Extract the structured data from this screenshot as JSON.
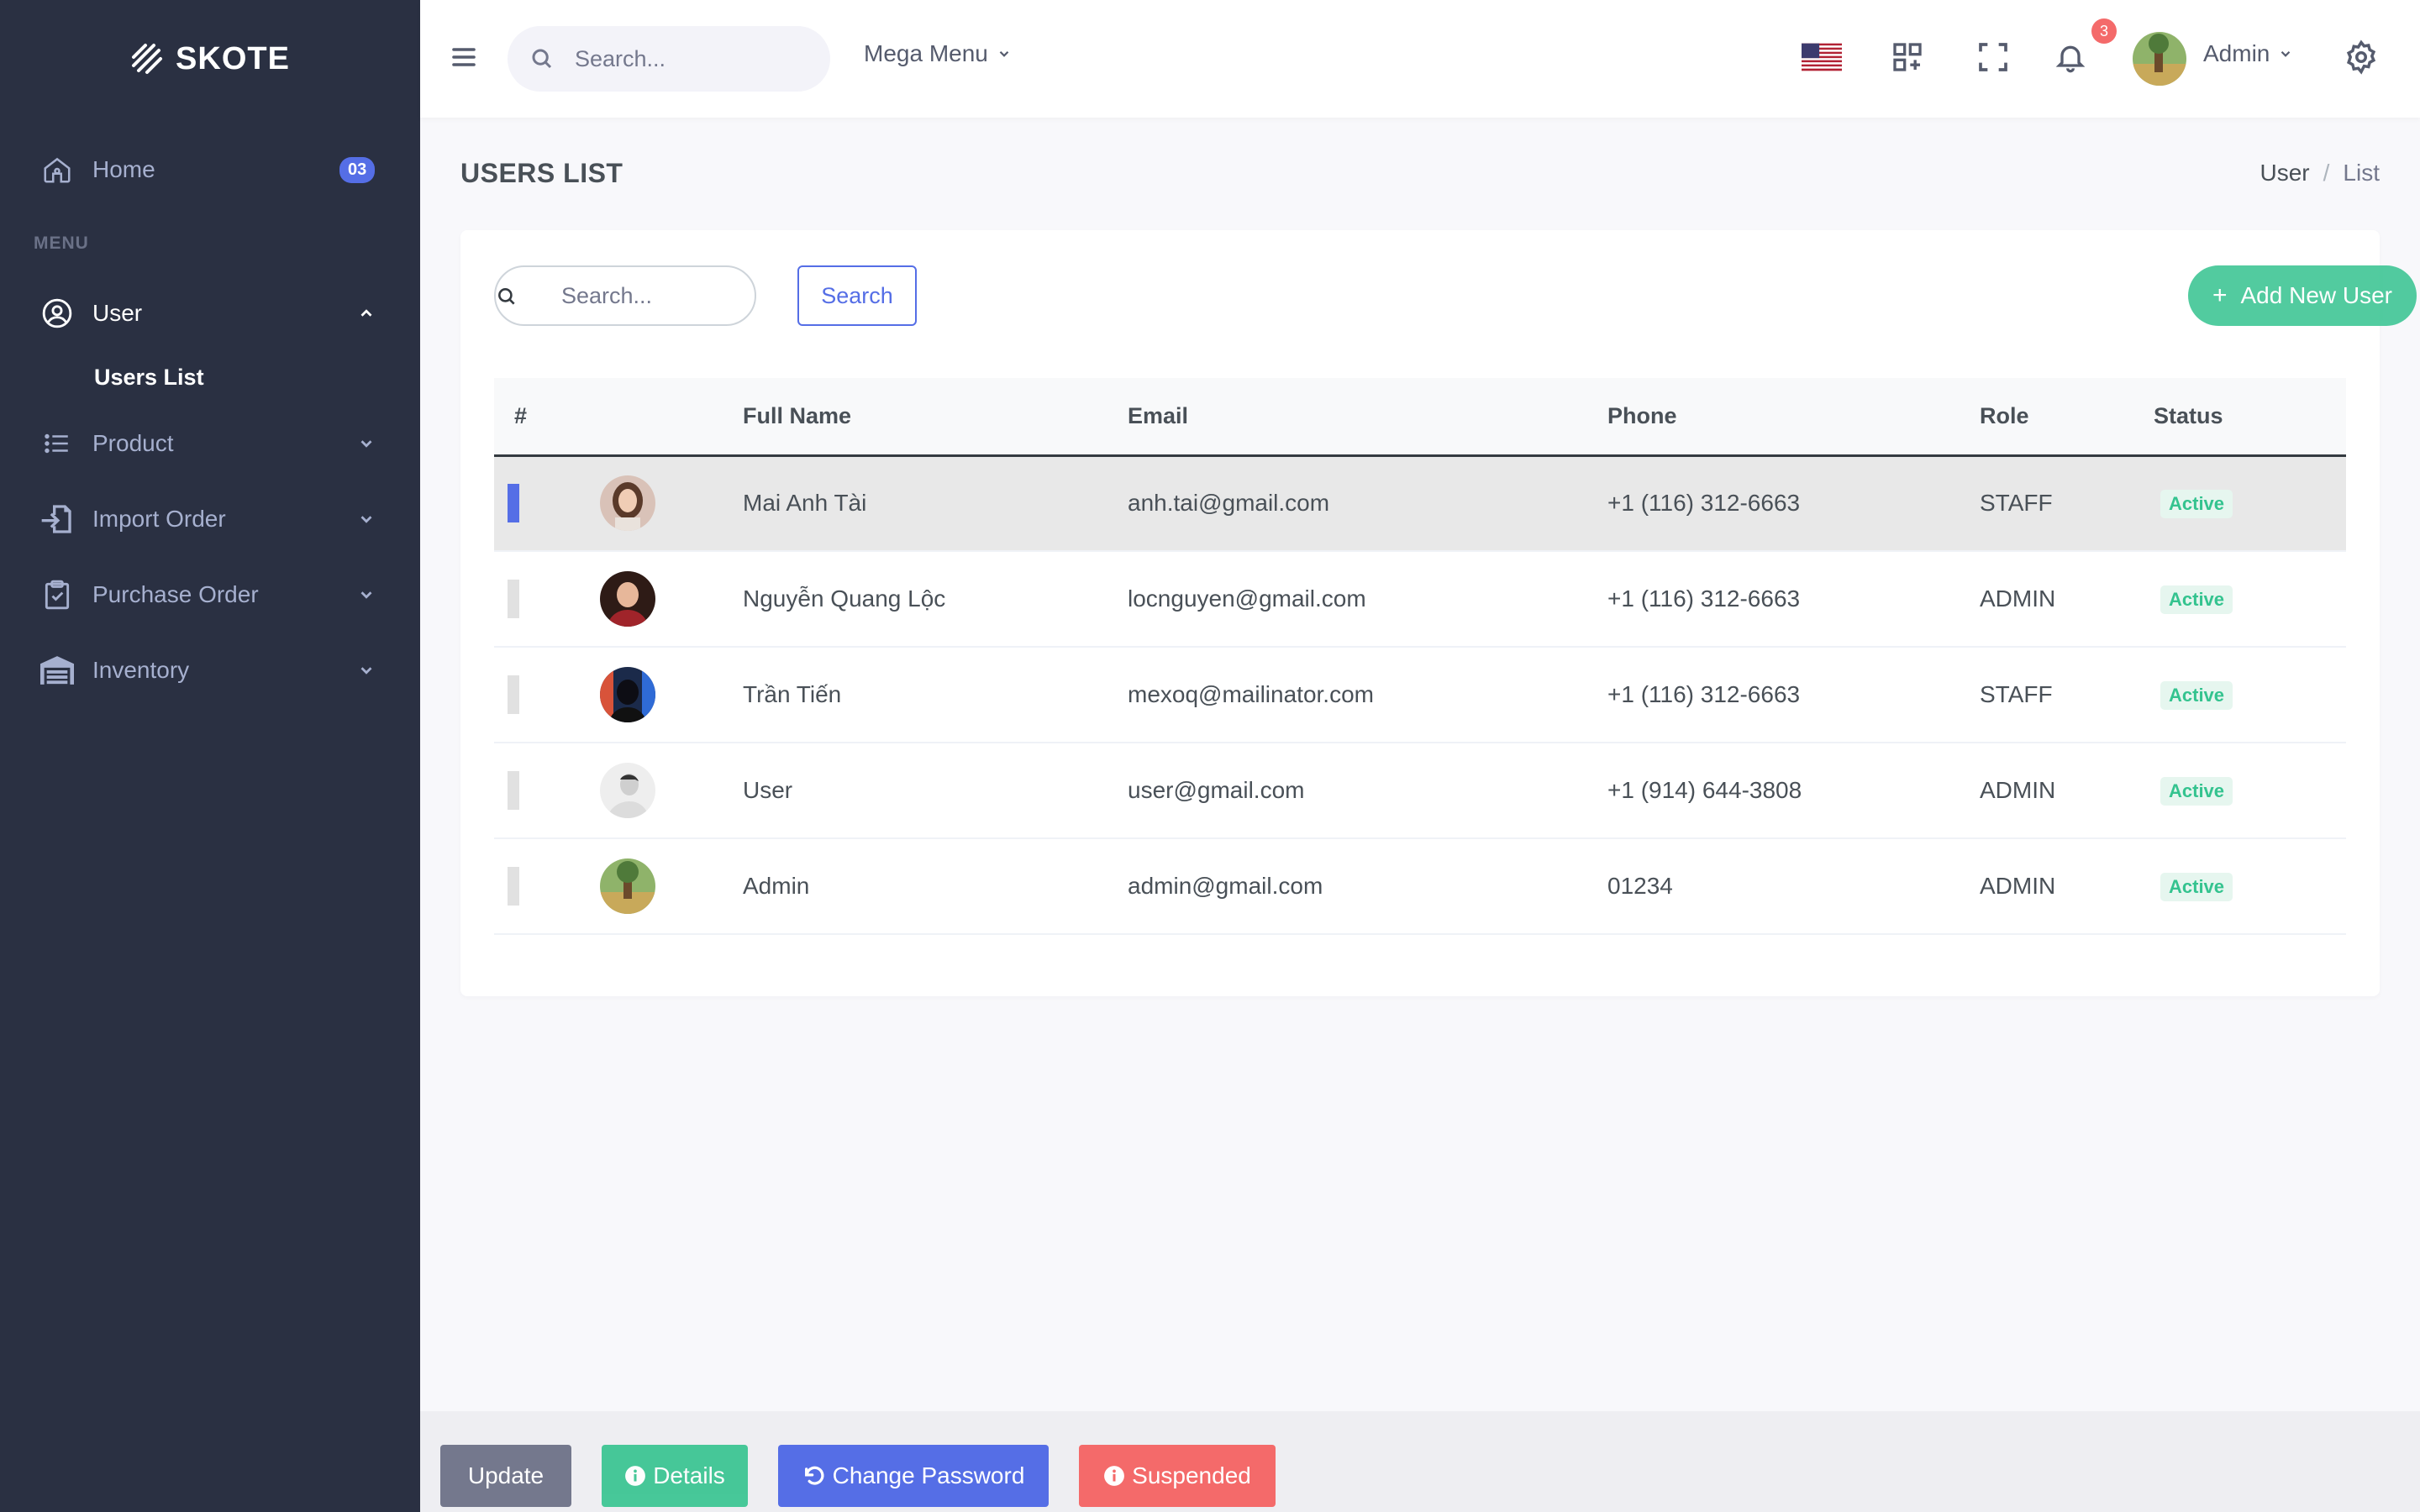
{
  "app": {
    "logo_text": "SKOTE"
  },
  "sidebar": {
    "home": {
      "label": "Home",
      "badge": "03",
      "icon": "home-icon"
    },
    "menu_title": "MENU",
    "items": [
      {
        "label": "User",
        "icon": "user-circle-icon",
        "expanded": true
      },
      {
        "label": "Product",
        "icon": "list-icon"
      },
      {
        "label": "Import Order",
        "icon": "import-icon"
      },
      {
        "label": "Purchase Order",
        "icon": "clipboard-icon"
      },
      {
        "label": "Inventory",
        "icon": "warehouse-icon"
      }
    ],
    "user_submenu": [
      {
        "label": "Users List",
        "active": true
      }
    ]
  },
  "topbar": {
    "search_placeholder": "Search...",
    "mega_menu": "Mega Menu",
    "notification_count": "3",
    "user_name": "Admin"
  },
  "page": {
    "title": "USERS LIST",
    "breadcrumb": [
      "User",
      "List"
    ]
  },
  "card": {
    "search_placeholder": "Search...",
    "search_button": "Search",
    "add_button": "Add New User"
  },
  "table": {
    "headers": [
      "#",
      "",
      "Full Name",
      "Email",
      "Phone",
      "Role",
      "Status"
    ],
    "rows": [
      {
        "name": "Mai Anh Tài",
        "email": "anh.tai@gmail.com",
        "phone": "+1 (116) 312-6663",
        "role": "STAFF",
        "status": "Active",
        "selected": true
      },
      {
        "name": "Nguyễn Quang Lộc",
        "email": "locnguyen@gmail.com",
        "phone": "+1 (116) 312-6663",
        "role": "ADMIN",
        "status": "Active"
      },
      {
        "name": "Trần Tiến",
        "email": "mexoq@mailinator.com",
        "phone": "+1 (116) 312-6663",
        "role": "STAFF",
        "status": "Active"
      },
      {
        "name": "User",
        "email": "user@gmail.com",
        "phone": "+1 (914) 644-3808",
        "role": "ADMIN",
        "status": "Active"
      },
      {
        "name": "Admin",
        "email": "admin@gmail.com",
        "phone": "01234",
        "role": "ADMIN",
        "status": "Active"
      }
    ]
  },
  "actions": {
    "update": "Update",
    "details": "Details",
    "change_password": "Change Password",
    "suspended": "Suspended"
  },
  "colors": {
    "sidebar_bg": "#2a3042",
    "primary": "#556ee6",
    "success": "#34c38f",
    "danger": "#f46a6a",
    "secondary": "#74788d"
  }
}
